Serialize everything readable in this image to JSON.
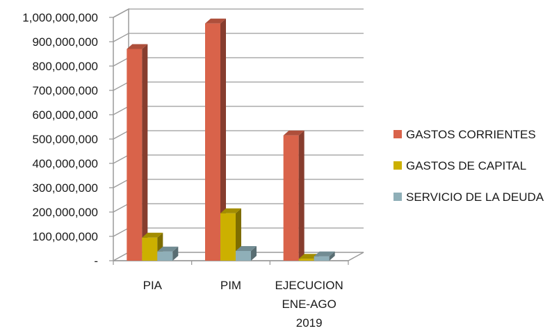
{
  "chart_data": {
    "type": "bar",
    "variant": "3d-clustered-column",
    "categories": [
      [
        "PIA"
      ],
      [
        "PIM"
      ],
      [
        "EJECUCION",
        "ENE-AGO",
        "2019"
      ]
    ],
    "series": [
      {
        "name": "GASTOS CORRIENTES",
        "color": "#D9634A",
        "values": [
          870000000,
          975000000,
          515000000
        ]
      },
      {
        "name": "GASTOS DE CAPITAL",
        "color": "#CCB000",
        "values": [
          95000000,
          195000000,
          8000000
        ]
      },
      {
        "name": "SERVICIO DE LA DEUDA",
        "color": "#8FAFB8",
        "values": [
          38000000,
          40000000,
          18000000
        ]
      }
    ],
    "y_ticks": [
      "-",
      "100,000,000",
      "200,000,000",
      "300,000,000",
      "400,000,000",
      "500,000,000",
      "600,000,000",
      "700,000,000",
      "800,000,000",
      "900,000,000",
      "1,000,000,000"
    ],
    "ylim": [
      0,
      1000000000
    ],
    "grid": true,
    "legend": "right",
    "title": "",
    "xlabel": "",
    "ylabel": ""
  }
}
